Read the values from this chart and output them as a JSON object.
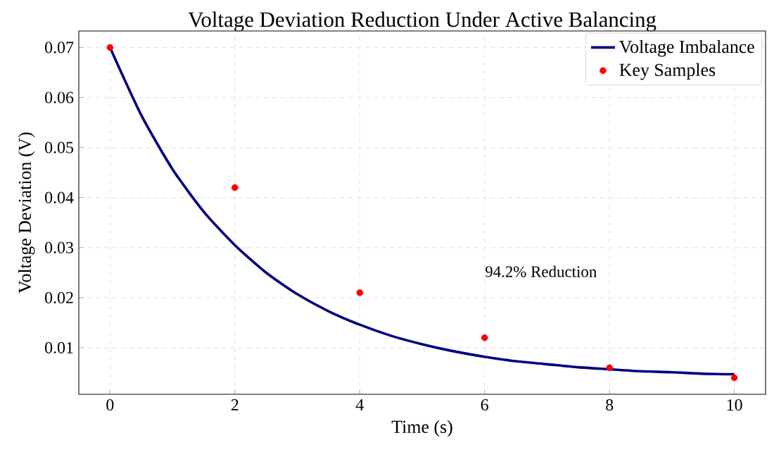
{
  "chart_data": {
    "type": "line",
    "title": "Voltage Deviation Reduction Under Active Balancing",
    "xlabel": "Time (s)",
    "ylabel": "Voltage Deviation (V)",
    "xlim": [
      -0.5,
      10.5
    ],
    "ylim": [
      0.0007,
      0.0733
    ],
    "xticks": [
      0,
      2,
      4,
      6,
      8,
      10
    ],
    "yticks": [
      0.01,
      0.02,
      0.03,
      0.04,
      0.05,
      0.06,
      0.07
    ],
    "grid": true,
    "legend": "top right",
    "series": [
      {
        "name": "Voltage Imbalance",
        "color": "#000080",
        "line_style": "solid",
        "marker": "none",
        "x": [
          0,
          0.5,
          1,
          1.5,
          2,
          2.5,
          3,
          3.5,
          4,
          4.5,
          5,
          5.5,
          6,
          6.5,
          7,
          7.5,
          8,
          8.5,
          9,
          9.5,
          10
        ],
        "values": [
          0.07,
          0.0565,
          0.0457,
          0.0372,
          0.0305,
          0.025,
          0.0207,
          0.0173,
          0.0146,
          0.0124,
          0.0107,
          0.0093,
          0.0082,
          0.0073,
          0.0067,
          0.0061,
          0.0057,
          0.0053,
          0.0051,
          0.0048,
          0.0047
        ]
      },
      {
        "name": "Key Samples",
        "type": "scatter",
        "color": "#ff0000",
        "marker": "circle",
        "x": [
          0,
          2,
          4,
          6,
          8,
          10
        ],
        "values": [
          0.07,
          0.042,
          0.021,
          0.012,
          0.006,
          0.004
        ]
      }
    ],
    "annotations": [
      "94.2% Reduction"
    ]
  }
}
